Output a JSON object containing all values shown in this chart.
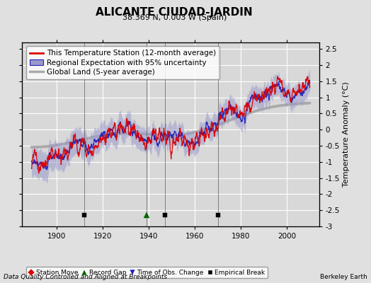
{
  "title": "ALICANTE CIUDAD-JARDIN",
  "subtitle": "38.369 N, 0.003 W (Spain)",
  "ylabel": "Temperature Anomaly (°C)",
  "xlabel_note": "Data Quality Controlled and Aligned at Breakpoints",
  "credit": "Berkeley Earth",
  "ylim": [
    -3,
    2.7
  ],
  "xlim": [
    1885,
    2014
  ],
  "yticks": [
    -3,
    -2.5,
    -2,
    -1.5,
    -1,
    -0.5,
    0,
    0.5,
    1,
    1.5,
    2,
    2.5
  ],
  "xticks": [
    1900,
    1920,
    1940,
    1960,
    1980,
    2000
  ],
  "bg_color": "#e0e0e0",
  "plot_bg_color": "#d8d8d8",
  "red_line_color": "#dd0000",
  "blue_line_color": "#2222bb",
  "blue_fill_color": "#9999cc",
  "gray_line_color": "#aaaaaa",
  "empirical_breaks": [
    1912,
    1947,
    1970
  ],
  "record_gaps": [
    1939
  ],
  "station_moves": [],
  "time_obs_changes": [],
  "title_fontsize": 11,
  "subtitle_fontsize": 8,
  "tick_fontsize": 7.5,
  "label_fontsize": 8,
  "legend_fontsize": 7.5
}
